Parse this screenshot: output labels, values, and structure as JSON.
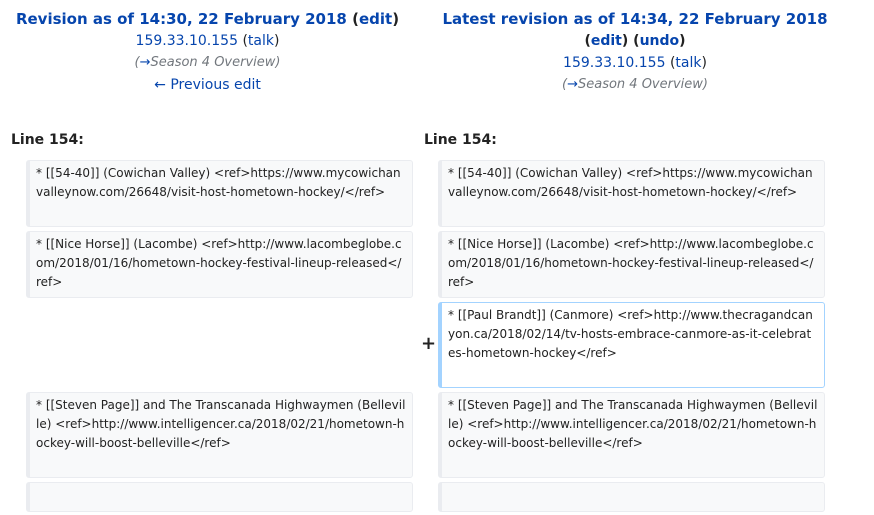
{
  "left_header": {
    "title_prefix": "Revision as of 14:30, 22 February 2018",
    "edit_label": "edit",
    "user": "159.33.10.155",
    "talk_label": "talk",
    "summary_arrow": "→",
    "summary": "Season 4 Overview",
    "prev_edit": "← Previous edit"
  },
  "right_header": {
    "title_prefix": "Latest revision as of 14:34, 22 February 2018",
    "edit_label": "edit",
    "undo_label": "undo",
    "user": "159.33.10.155",
    "talk_label": "talk",
    "summary_arrow": "→",
    "summary": "Season 4 Overview"
  },
  "line_label_left": "Line 154:",
  "line_label_right": "Line 154:",
  "diff_marker": "+",
  "left_blocks": [
    "* [[54-40]] (Cowichan Valley) <ref>https://www.mycowichanvalleynow.com/26648/visit-host-hometown-hockey/</ref>",
    "* [[Nice Horse]] (Lacombe) <ref>http://www.lacombeglobe.com/2018/01/16/hometown-hockey-festival-lineup-released</ref>",
    "* [[Steven Page]] and The Transcanada Highwaymen (Belleville) <ref>http://www.intelligencer.ca/2018/02/21/hometown-hockey-will-boost-belleville</ref>"
  ],
  "right_blocks": [
    "* [[54-40]] (Cowichan Valley) <ref>https://www.mycowichanvalleynow.com/26648/visit-host-hometown-hockey/</ref>",
    "* [[Nice Horse]] (Lacombe) <ref>http://www.lacombeglobe.com/2018/01/16/hometown-hockey-festival-lineup-released</ref>",
    "* [[Paul Brandt]] (Canmore) <ref>http://www.thecragandcanyon.ca/2018/02/14/tv-hosts-embrace-canmore-as-it-celebrates-hometown-hockey</ref>",
    "* [[Steven Page]] and The Transcanada Highwaymen (Belleville) <ref>http://www.intelligencer.ca/2018/02/21/hometown-hockey-will-boost-belleville</ref>"
  ]
}
